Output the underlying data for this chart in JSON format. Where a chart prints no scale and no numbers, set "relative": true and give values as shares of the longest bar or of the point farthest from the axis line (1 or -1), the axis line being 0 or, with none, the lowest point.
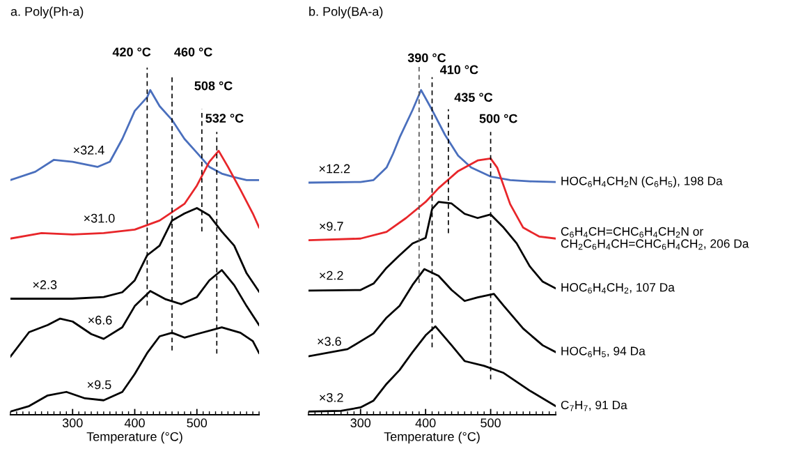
{
  "chart_data": [
    {
      "type": "line",
      "title": "a. Poly(Ph-a)",
      "xlabel": "Temperature (°C)",
      "relative": true,
      "xlim": [
        200,
        600
      ],
      "xticks": [
        {
          "value": 200,
          "label": null
        },
        {
          "value": 210,
          "label": null
        },
        {
          "value": 220,
          "label": null
        },
        {
          "value": 230,
          "label": null
        },
        {
          "value": 240,
          "label": null
        },
        {
          "value": 250,
          "label": null
        },
        {
          "value": 260,
          "label": null
        },
        {
          "value": 270,
          "label": null
        },
        {
          "value": 280,
          "label": null
        },
        {
          "value": 290,
          "label": null
        },
        300,
        {
          "value": 310,
          "label": null
        },
        {
          "value": 320,
          "label": null
        },
        {
          "value": 330,
          "label": null
        },
        {
          "value": 340,
          "label": null
        },
        {
          "value": 350,
          "label": null
        },
        {
          "value": 360,
          "label": null
        },
        {
          "value": 370,
          "label": null
        },
        {
          "value": 380,
          "label": null
        },
        {
          "value": 390,
          "label": null
        },
        400,
        {
          "value": 410,
          "label": null
        },
        {
          "value": 420,
          "label": null
        },
        {
          "value": 430,
          "label": null
        },
        {
          "value": 440,
          "label": null
        },
        {
          "value": 450,
          "label": null
        },
        {
          "value": 460,
          "label": null
        },
        {
          "value": 470,
          "label": null
        },
        {
          "value": 480,
          "label": null
        },
        {
          "value": 490,
          "label": null
        },
        500,
        {
          "value": 510,
          "label": null
        },
        {
          "value": 520,
          "label": null
        },
        {
          "value": 530,
          "label": null
        },
        {
          "value": 540,
          "label": null
        },
        {
          "value": 550,
          "label": null
        },
        {
          "value": 560,
          "label": null
        },
        {
          "value": 570,
          "label": null
        },
        {
          "value": 580,
          "label": null
        },
        {
          "value": 590,
          "label": null
        },
        {
          "value": 600,
          "label": null
        }
      ],
      "tick_labels": "x",
      "grid": false,
      "legend": false,
      "marker": "none",
      "line_style": "solid",
      "series": [
        {
          "color": "#4a6fbd",
          "x": [
            200,
            240,
            270,
            300,
            340,
            360,
            380,
            400,
            420,
            425,
            440,
            460,
            480,
            500,
            520,
            540,
            560,
            580,
            600
          ],
          "values": [
            0.72,
            0.746,
            0.783,
            0.777,
            0.761,
            0.777,
            0.848,
            0.935,
            0.978,
            1.0,
            0.95,
            0.907,
            0.848,
            0.805,
            0.761,
            0.74,
            0.729,
            0.72,
            0.72
          ]
        },
        {
          "color": "#e8262a",
          "x": [
            200,
            250,
            300,
            350,
            400,
            440,
            480,
            500,
            520,
            535,
            550,
            570,
            590,
            600
          ],
          "values": [
            0.538,
            0.555,
            0.551,
            0.555,
            0.566,
            0.594,
            0.646,
            0.703,
            0.777,
            0.811,
            0.761,
            0.69,
            0.616,
            0.573
          ]
        },
        {
          "color": "#000000",
          "x": [
            200,
            300,
            350,
            380,
            400,
            420,
            440,
            460,
            480,
            500,
            520,
            540,
            560,
            580,
            600
          ],
          "values": [
            0.351,
            0.351,
            0.356,
            0.371,
            0.408,
            0.486,
            0.516,
            0.594,
            0.616,
            0.633,
            0.61,
            0.56,
            0.516,
            0.43,
            0.373
          ]
        },
        {
          "color": "#000000",
          "x": [
            200,
            230,
            260,
            280,
            300,
            330,
            350,
            380,
            400,
            425,
            450,
            475,
            500,
            520,
            540,
            560,
            580,
            600
          ],
          "values": [
            0.171,
            0.247,
            0.269,
            0.289,
            0.28,
            0.241,
            0.226,
            0.262,
            0.328,
            0.375,
            0.349,
            0.334,
            0.356,
            0.408,
            0.44,
            0.393,
            0.328,
            0.269
          ]
        },
        {
          "color": "#000000",
          "x": [
            200,
            230,
            260,
            290,
            320,
            350,
            380,
            400,
            420,
            440,
            460,
            480,
            500,
            540,
            570,
            590,
            600
          ],
          "values": [
            0.0,
            0.017,
            0.05,
            0.061,
            0.041,
            0.035,
            0.061,
            0.117,
            0.182,
            0.234,
            0.245,
            0.23,
            0.241,
            0.262,
            0.245,
            0.219,
            0.182
          ]
        }
      ],
      "ref_lines": [
        {
          "axis": "x",
          "value": 420,
          "label": "420 °C",
          "color": "#000000",
          "line_style": "dashed"
        },
        {
          "axis": "x",
          "value": 460,
          "label": "460 °C",
          "color": "#000000",
          "line_style": "dashed"
        },
        {
          "axis": "x",
          "value": 508,
          "label": "508 °C",
          "color": "#000000",
          "line_style": "dashed"
        },
        {
          "axis": "x",
          "value": 532,
          "label": "532 °C",
          "color": "#000000",
          "line_style": "dashed"
        }
      ],
      "annotations": [
        "×32.4",
        "×31.0",
        "×2.3",
        "×6.6",
        "×9.5"
      ]
    },
    {
      "type": "line",
      "title": "b. Poly(BA-a)",
      "xlabel": "Temperature (°C)",
      "relative": true,
      "xlim": [
        220,
        600
      ],
      "xticks": [
        {
          "value": 220,
          "label": null
        },
        {
          "value": 230,
          "label": null
        },
        {
          "value": 240,
          "label": null
        },
        {
          "value": 250,
          "label": null
        },
        {
          "value": 260,
          "label": null
        },
        {
          "value": 270,
          "label": null
        },
        {
          "value": 280,
          "label": null
        },
        {
          "value": 290,
          "label": null
        },
        300,
        {
          "value": 310,
          "label": null
        },
        {
          "value": 320,
          "label": null
        },
        {
          "value": 330,
          "label": null
        },
        {
          "value": 340,
          "label": null
        },
        {
          "value": 350,
          "label": null
        },
        {
          "value": 360,
          "label": null
        },
        {
          "value": 370,
          "label": null
        },
        {
          "value": 380,
          "label": null
        },
        {
          "value": 390,
          "label": null
        },
        400,
        {
          "value": 410,
          "label": null
        },
        {
          "value": 420,
          "label": null
        },
        {
          "value": 430,
          "label": null
        },
        {
          "value": 440,
          "label": null
        },
        {
          "value": 450,
          "label": null
        },
        {
          "value": 460,
          "label": null
        },
        {
          "value": 470,
          "label": null
        },
        {
          "value": 480,
          "label": null
        },
        {
          "value": 490,
          "label": null
        },
        500,
        {
          "value": 510,
          "label": null
        },
        {
          "value": 520,
          "label": null
        },
        {
          "value": 530,
          "label": null
        },
        {
          "value": 540,
          "label": null
        },
        {
          "value": 550,
          "label": null
        },
        {
          "value": 560,
          "label": null
        },
        {
          "value": 570,
          "label": null
        },
        {
          "value": 580,
          "label": null
        },
        {
          "value": 590,
          "label": null
        },
        {
          "value": 600,
          "label": null
        }
      ],
      "tick_labels": "x",
      "grid": false,
      "legend": false,
      "marker": "none",
      "line_style": "solid",
      "series": [
        {
          "name": "HOC$_{6}$H$_{4}$CH$_{2}$N (C$_{6}$H$_{5}$), 198 Da",
          "color": "#4a6fbd",
          "x": [
            220,
            300,
            320,
            340,
            350,
            360,
            380,
            393,
            410,
            430,
            450,
            470,
            500,
            530,
            560,
            600
          ],
          "values": [
            0.712,
            0.714,
            0.72,
            0.759,
            0.802,
            0.852,
            0.938,
            1.0,
            0.938,
            0.86,
            0.796,
            0.759,
            0.731,
            0.72,
            0.716,
            0.714
          ]
        },
        {
          "name": "C$_{6}$H$_{4}$CH=CHC$_{6}$H$_{4}$CH$_{2}$N or\nCH$_{2}$C$_{6}$H$_{4}$CH=CHC$_{6}$H$_{4}$CH$_{2}$, 206 Da",
          "color": "#e8262a",
          "x": [
            220,
            300,
            340,
            370,
            400,
            420,
            450,
            480,
            500,
            510,
            530,
            550,
            575,
            600
          ],
          "values": [
            0.533,
            0.538,
            0.559,
            0.602,
            0.652,
            0.695,
            0.748,
            0.781,
            0.787,
            0.759,
            0.645,
            0.572,
            0.544,
            0.538
          ]
        },
        {
          "name": "HOC$_{6}$H$_{4}$CH$_{2}$, 107 Da",
          "color": "#000000",
          "x": [
            220,
            300,
            320,
            340,
            360,
            380,
            400,
            410,
            420,
            440,
            460,
            480,
            500,
            520,
            540,
            560,
            580,
            600
          ],
          "values": [
            0.376,
            0.378,
            0.398,
            0.447,
            0.486,
            0.523,
            0.54,
            0.63,
            0.652,
            0.647,
            0.615,
            0.602,
            0.613,
            0.572,
            0.523,
            0.452,
            0.404,
            0.383
          ]
        },
        {
          "name": "HOC$_{6}$H$_{5}$, 94 Da",
          "color": "#000000",
          "x": [
            220,
            280,
            320,
            340,
            360,
            380,
            398,
            420,
            440,
            460,
            480,
            505,
            520,
            550,
            580,
            600
          ],
          "values": [
            0.172,
            0.194,
            0.243,
            0.292,
            0.329,
            0.394,
            0.443,
            0.422,
            0.378,
            0.344,
            0.355,
            0.366,
            0.329,
            0.258,
            0.206,
            0.185
          ]
        },
        {
          "name": "C$_{7}$H$_{7}$, 91 Da",
          "color": "#000000",
          "x": [
            220,
            270,
            300,
            320,
            340,
            360,
            380,
            400,
            415,
            440,
            460,
            490,
            520,
            560,
            600
          ],
          "values": [
            0.0,
            0.002,
            0.013,
            0.034,
            0.086,
            0.129,
            0.185,
            0.237,
            0.265,
            0.206,
            0.157,
            0.142,
            0.12,
            0.065,
            0.017
          ]
        }
      ],
      "ref_lines": [
        {
          "axis": "x",
          "value": 390,
          "label": "390 °C",
          "color": "#555555",
          "line_style": "dashed"
        },
        {
          "axis": "x",
          "value": 410,
          "label": "410 °C",
          "color": "#000000",
          "line_style": "dashed"
        },
        {
          "axis": "x",
          "value": 435,
          "label": "435 °C",
          "color": "#000000",
          "line_style": "dashed"
        },
        {
          "axis": "x",
          "value": 500,
          "label": "500 °C",
          "color": "#000000",
          "line_style": "dashed"
        }
      ],
      "annotations": [
        "×12.2",
        "×9.7",
        "×2.2",
        "×3.6",
        "×3.2"
      ]
    }
  ]
}
